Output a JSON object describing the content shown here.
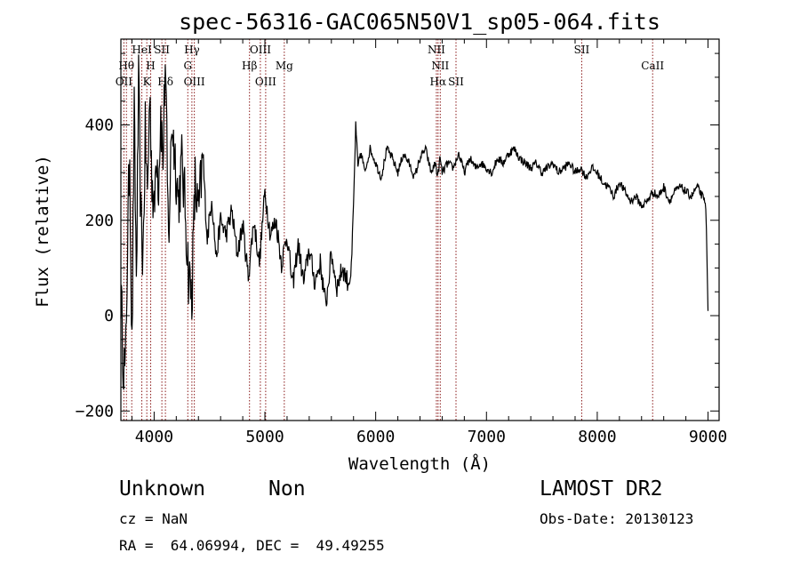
{
  "chart_data": {
    "type": "line",
    "title": "spec-56316-GAC065N50V1_sp05-064.fits",
    "xlabel": "Wavelength (Å)",
    "ylabel": "Flux (relative)",
    "xlim": [
      3700,
      9100
    ],
    "ylim": [
      -220,
      580
    ],
    "xticks": [
      {
        "value": 4000,
        "label": "4000"
      },
      {
        "value": 5000,
        "label": "5000"
      },
      {
        "value": 6000,
        "label": "6000"
      },
      {
        "value": 7000,
        "label": "7000"
      },
      {
        "value": 8000,
        "label": "8000"
      },
      {
        "value": 9000,
        "label": "9000"
      }
    ],
    "yticks": [
      {
        "value": -200,
        "label": "−200"
      },
      {
        "value": 0,
        "label": "0"
      },
      {
        "value": 200,
        "label": "200"
      },
      {
        "value": 400,
        "label": "400"
      }
    ],
    "line_color": "#000000",
    "marker_color": "#8b1a1a",
    "series": [
      {
        "x": [
          3700,
          3720,
          3740,
          3760,
          3780,
          3800,
          3820,
          3840,
          3860,
          3880,
          3900,
          3920,
          3940,
          3960,
          3980,
          4000,
          4020,
          4040,
          4060,
          4080,
          4100,
          4130,
          4160,
          4190,
          4220,
          4250,
          4280,
          4310,
          4340,
          4370,
          4400,
          4440,
          4480,
          4520,
          4560,
          4600,
          4650,
          4700,
          4750,
          4800,
          4850,
          4900,
          4950,
          5000,
          5050,
          5100,
          5150,
          5200,
          5250,
          5300,
          5350,
          5400,
          5450,
          5500,
          5550,
          5600,
          5650,
          5700,
          5750,
          5780,
          5800,
          5820,
          5840,
          5860,
          5880,
          5900,
          5950,
          6000,
          6050,
          6100,
          6150,
          6200,
          6250,
          6300,
          6350,
          6400,
          6450,
          6500,
          6540,
          6560,
          6580,
          6600,
          6650,
          6700,
          6750,
          6800,
          6850,
          6900,
          6950,
          7000,
          7050,
          7100,
          7150,
          7200,
          7250,
          7300,
          7350,
          7400,
          7450,
          7500,
          7550,
          7600,
          7650,
          7700,
          7750,
          7800,
          7850,
          7900,
          7950,
          8000,
          8050,
          8100,
          8150,
          8200,
          8250,
          8300,
          8350,
          8400,
          8450,
          8500,
          8550,
          8600,
          8650,
          8700,
          8750,
          8800,
          8850,
          8900,
          8950,
          8980,
          9000
        ],
        "y": [
          50,
          -80,
          -130,
          150,
          350,
          -80,
          420,
          80,
          480,
          200,
          120,
          380,
          250,
          470,
          300,
          200,
          360,
          280,
          430,
          320,
          540,
          150,
          410,
          330,
          240,
          320,
          230,
          90,
          40,
          280,
          210,
          330,
          160,
          250,
          120,
          200,
          170,
          220,
          130,
          190,
          80,
          200,
          110,
          260,
          170,
          200,
          110,
          170,
          60,
          150,
          70,
          140,
          70,
          110,
          20,
          130,
          60,
          100,
          70,
          90,
          230,
          400,
          310,
          340,
          330,
          300,
          350,
          320,
          290,
          350,
          330,
          300,
          340,
          320,
          290,
          330,
          350,
          300,
          320,
          290,
          330,
          300,
          320,
          310,
          340,
          300,
          330,
          310,
          320,
          310,
          300,
          330,
          320,
          340,
          350,
          330,
          320,
          310,
          320,
          300,
          310,
          320,
          300,
          310,
          320,
          300,
          310,
          290,
          310,
          300,
          280,
          270,
          250,
          280,
          260,
          240,
          250,
          230,
          240,
          260,
          250,
          270,
          240,
          260,
          270,
          260,
          250,
          270,
          250,
          230,
          10
        ]
      }
    ],
    "lines": [
      {
        "x": 3727,
        "label": "OII",
        "row": 3
      },
      {
        "x": 3750,
        "label": "Hθ",
        "row": 2
      },
      {
        "x": 3798,
        "label": "",
        "row": 0
      },
      {
        "x": 3889,
        "label": "HeI",
        "row": 1
      },
      {
        "x": 3934,
        "label": "K",
        "row": 3
      },
      {
        "x": 3969,
        "label": "H",
        "row": 2
      },
      {
        "x": 4070,
        "label": "SII",
        "row": 1
      },
      {
        "x": 4102,
        "label": "Hδ",
        "row": 3
      },
      {
        "x": 4304,
        "label": "G",
        "row": 2
      },
      {
        "x": 4341,
        "label": "Hγ",
        "row": 1
      },
      {
        "x": 4363,
        "label": "OIII",
        "row": 3
      },
      {
        "x": 4861,
        "label": "Hβ",
        "row": 2
      },
      {
        "x": 4959,
        "label": "OIII",
        "row": 1
      },
      {
        "x": 5007,
        "label": "OIII",
        "row": 3
      },
      {
        "x": 5175,
        "label": "Mg",
        "row": 2
      },
      {
        "x": 6548,
        "label": "NII",
        "row": 1
      },
      {
        "x": 6563,
        "label": "Hα",
        "row": 3
      },
      {
        "x": 6583,
        "label": "NII",
        "row": 2
      },
      {
        "x": 6725,
        "label": "SII",
        "row": 3
      },
      {
        "x": 7860,
        "label": "SII",
        "row": 1
      },
      {
        "x": 8500,
        "label": "CaII",
        "row": 2
      }
    ]
  },
  "footer": {
    "class_name": "Unknown",
    "subclass": "Non",
    "cz": "cz = NaN",
    "coords": "RA =  64.06994, DEC =  49.49255",
    "survey": "LAMOST DR2",
    "obs_date": "Obs-Date: 20130123"
  }
}
